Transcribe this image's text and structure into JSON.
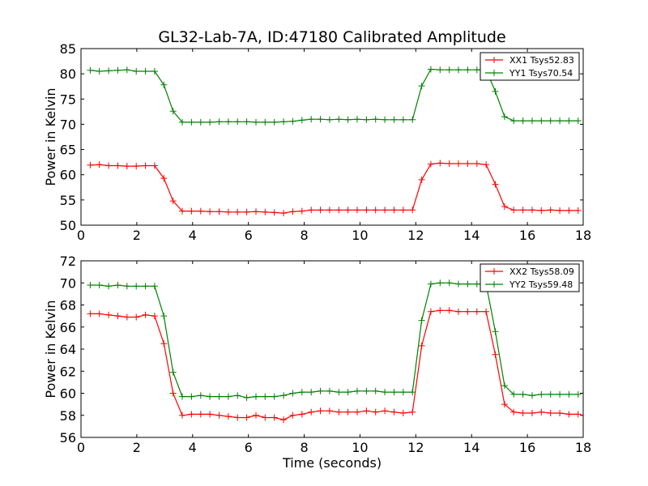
{
  "chart_data": [
    {
      "type": "line",
      "title": "GL32-Lab-7A, ID:47180 Calibrated Amplitude",
      "xlabel": "",
      "ylabel": "Power in Kelvin",
      "xlim": [
        0,
        18
      ],
      "ylim": [
        50,
        85
      ],
      "xticks": [
        "0",
        "2",
        "4",
        "6",
        "8",
        "10",
        "12",
        "14",
        "16",
        "18"
      ],
      "yticks": [
        "50",
        "55",
        "60",
        "65",
        "70",
        "75",
        "80",
        "85"
      ],
      "grid": false,
      "legend_position": "top-right",
      "x": [
        0.33,
        0.66,
        0.99,
        1.32,
        1.65,
        1.98,
        2.31,
        2.64,
        2.97,
        3.3,
        3.63,
        3.96,
        4.29,
        4.62,
        4.95,
        5.28,
        5.61,
        5.94,
        6.27,
        6.6,
        6.93,
        7.26,
        7.59,
        7.92,
        8.25,
        8.58,
        8.91,
        9.24,
        9.57,
        9.9,
        10.23,
        10.56,
        10.89,
        11.22,
        11.55,
        11.88,
        12.21,
        12.54,
        12.87,
        13.2,
        13.53,
        13.86,
        14.19,
        14.52,
        14.85,
        15.18,
        15.51,
        15.84,
        16.17,
        16.5,
        16.83,
        17.16,
        17.49,
        17.82
      ],
      "series": [
        {
          "name": "XX1 Tsys52.83",
          "color": "#ff0000",
          "values": [
            61.9,
            62.0,
            61.8,
            61.8,
            61.7,
            61.7,
            61.8,
            61.8,
            59.3,
            54.8,
            52.8,
            52.8,
            52.8,
            52.7,
            52.7,
            52.6,
            52.6,
            52.6,
            52.7,
            52.6,
            52.5,
            52.4,
            52.7,
            52.8,
            53.0,
            53.0,
            53.0,
            53.0,
            53.0,
            53.0,
            53.0,
            53.0,
            53.0,
            53.0,
            53.0,
            53.0,
            59.0,
            62.1,
            62.3,
            62.2,
            62.2,
            62.2,
            62.2,
            62.0,
            58.1,
            53.7,
            53.0,
            53.0,
            53.0,
            52.9,
            53.0,
            52.9,
            52.9,
            52.9
          ]
        },
        {
          "name": "YY1 Tsys70.54",
          "color": "#008000",
          "values": [
            80.7,
            80.5,
            80.6,
            80.7,
            80.8,
            80.5,
            80.5,
            80.5,
            77.8,
            72.6,
            70.4,
            70.4,
            70.4,
            70.4,
            70.5,
            70.5,
            70.5,
            70.5,
            70.4,
            70.4,
            70.4,
            70.5,
            70.6,
            70.8,
            71.0,
            71.0,
            70.9,
            71.0,
            70.9,
            71.0,
            70.9,
            71.0,
            70.9,
            70.9,
            70.9,
            70.9,
            77.6,
            80.9,
            80.8,
            80.8,
            80.8,
            80.8,
            80.8,
            80.8,
            76.5,
            71.5,
            70.7,
            70.7,
            70.7,
            70.7,
            70.7,
            70.7,
            70.7,
            70.7
          ]
        }
      ]
    },
    {
      "type": "line",
      "title": "",
      "xlabel": "Time (seconds)",
      "ylabel": "Power in Kelvin",
      "xlim": [
        0,
        18
      ],
      "ylim": [
        56,
        72
      ],
      "xticks": [
        "0",
        "2",
        "4",
        "6",
        "8",
        "10",
        "12",
        "14",
        "16",
        "18"
      ],
      "yticks": [
        "56",
        "58",
        "60",
        "62",
        "64",
        "66",
        "68",
        "70",
        "72"
      ],
      "grid": false,
      "legend_position": "top-right",
      "x": [
        0.33,
        0.66,
        0.99,
        1.32,
        1.65,
        1.98,
        2.31,
        2.64,
        2.97,
        3.3,
        3.63,
        3.96,
        4.29,
        4.62,
        4.95,
        5.28,
        5.61,
        5.94,
        6.27,
        6.6,
        6.93,
        7.26,
        7.59,
        7.92,
        8.25,
        8.58,
        8.91,
        9.24,
        9.57,
        9.9,
        10.23,
        10.56,
        10.89,
        11.22,
        11.55,
        11.88,
        12.21,
        12.54,
        12.87,
        13.2,
        13.53,
        13.86,
        14.19,
        14.52,
        14.85,
        15.18,
        15.51,
        15.84,
        16.17,
        16.5,
        16.83,
        17.16,
        17.49,
        17.82
      ],
      "series": [
        {
          "name": "XX2 Tsys58.09",
          "color": "#ff0000",
          "values": [
            67.2,
            67.2,
            67.1,
            67.0,
            66.9,
            66.9,
            67.1,
            67.0,
            64.5,
            60.0,
            58.0,
            58.1,
            58.1,
            58.1,
            58.0,
            57.9,
            57.8,
            57.8,
            58.0,
            57.8,
            57.8,
            57.6,
            58.0,
            58.1,
            58.3,
            58.4,
            58.4,
            58.3,
            58.3,
            58.3,
            58.4,
            58.3,
            58.4,
            58.3,
            58.2,
            58.3,
            64.3,
            67.4,
            67.5,
            67.5,
            67.4,
            67.4,
            67.4,
            67.4,
            63.5,
            59.0,
            58.3,
            58.2,
            58.2,
            58.3,
            58.2,
            58.2,
            58.1,
            58.1
          ]
        },
        {
          "name": "YY2 Tsys59.48",
          "color": "#008000",
          "values": [
            69.8,
            69.8,
            69.7,
            69.8,
            69.7,
            69.7,
            69.7,
            69.7,
            67.0,
            61.9,
            59.7,
            59.7,
            59.8,
            59.7,
            59.7,
            59.7,
            59.8,
            59.6,
            59.7,
            59.7,
            59.7,
            59.8,
            60.0,
            60.1,
            60.1,
            60.2,
            60.2,
            60.1,
            60.1,
            60.2,
            60.2,
            60.2,
            60.1,
            60.1,
            60.1,
            60.1,
            66.6,
            69.9,
            70.0,
            70.0,
            69.9,
            69.9,
            69.9,
            69.9,
            65.6,
            60.7,
            59.9,
            59.9,
            59.8,
            59.9,
            59.9,
            59.9,
            59.9,
            59.9
          ]
        }
      ]
    }
  ]
}
